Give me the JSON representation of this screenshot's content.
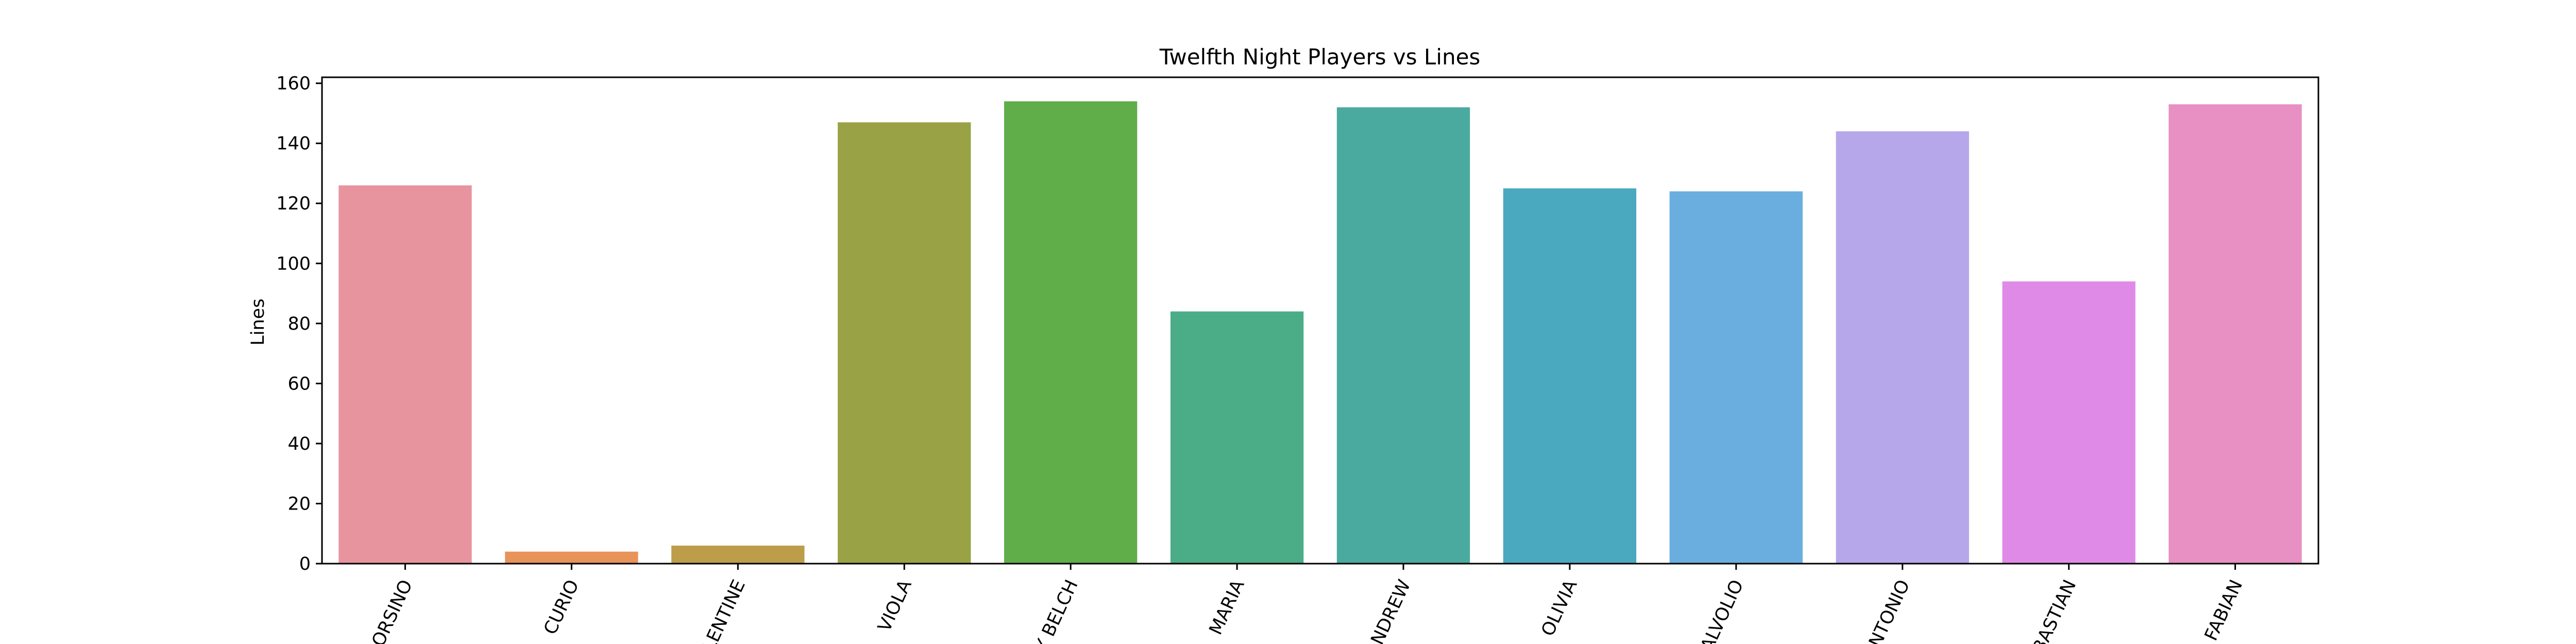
{
  "chart_data": {
    "type": "bar",
    "title": "Twelfth Night Players vs Lines",
    "xlabel": "",
    "ylabel": "Lines",
    "ylim": [
      0,
      162
    ],
    "yticks": [
      0,
      20,
      40,
      60,
      80,
      100,
      120,
      140,
      160
    ],
    "grid": false,
    "categories": [
      "ORSINO",
      "CURIO",
      "LENTINE",
      "VIOLA",
      "Y BELCH",
      "MARIA",
      "ANDREW",
      "OLIVIA",
      "ALVOLIO",
      "NTONIO",
      "BASTIAN",
      "FABIAN"
    ],
    "values": [
      126,
      4,
      6,
      147,
      154,
      84,
      152,
      125,
      124,
      144,
      94,
      153
    ],
    "colors": [
      "#e8949f",
      "#e8935a",
      "#bd9d49",
      "#99a346",
      "#5fae4a",
      "#4aad87",
      "#4aaaa0",
      "#4aa9bf",
      "#6aaedf",
      "#b6a6ea",
      "#df8ae6",
      "#e88fc3"
    ]
  }
}
